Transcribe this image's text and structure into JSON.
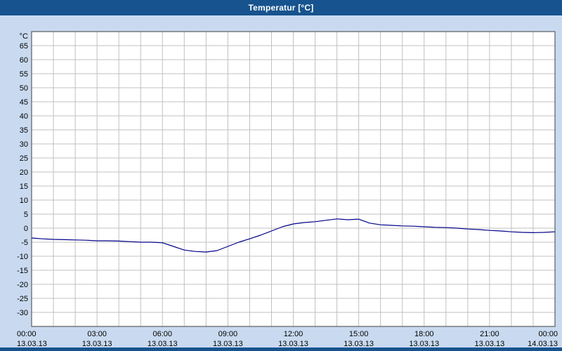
{
  "window": {
    "title": "Temperatur [°C]",
    "colors": {
      "titlebar": "#17538e",
      "background": "#c9daf0",
      "bottom_border": "#17538e"
    }
  },
  "chart_data": {
    "type": "line",
    "title": "Temperatur [°C]",
    "y_axis": {
      "unit_label": "°C",
      "min": -35,
      "max": 70,
      "tick_step": 5,
      "tick_labels": [
        "65",
        "60",
        "55",
        "50",
        "45",
        "40",
        "35",
        "30",
        "25",
        "20",
        "15",
        "10",
        "5",
        "0",
        "-5",
        "-10",
        "-15",
        "-20",
        "-25",
        "-30"
      ]
    },
    "x_axis": {
      "min_hour": 0,
      "max_hour": 24,
      "minor_grid_step_hours": 1,
      "ticks": [
        {
          "hour": 0,
          "time": "00:00",
          "date": "13.03.13"
        },
        {
          "hour": 3,
          "time": "03:00",
          "date": "13.03.13"
        },
        {
          "hour": 6,
          "time": "06:00",
          "date": "13.03.13"
        },
        {
          "hour": 9,
          "time": "09:00",
          "date": "13.03.13"
        },
        {
          "hour": 12,
          "time": "12:00",
          "date": "13.03.13"
        },
        {
          "hour": 15,
          "time": "15:00",
          "date": "13.03.13"
        },
        {
          "hour": 18,
          "time": "18:00",
          "date": "13.03.13"
        },
        {
          "hour": 21,
          "time": "21:00",
          "date": "13.03.13"
        },
        {
          "hour": 24,
          "time": "00:00",
          "date": "14.03.13"
        }
      ]
    },
    "grid": {
      "show": true,
      "color": "#c0c0c0"
    },
    "plot": {
      "background": "#ffffff",
      "border_color": "#404040"
    },
    "series": [
      {
        "name": "Temperatur",
        "unit": "°C",
        "color": "#00008b",
        "x_hours": [
          0,
          0.5,
          1,
          1.5,
          2,
          2.5,
          3,
          3.5,
          4,
          4.5,
          5,
          5.5,
          6,
          6.5,
          7,
          7.5,
          8,
          8.5,
          9,
          9.5,
          10,
          10.5,
          11,
          11.5,
          12,
          12.5,
          13,
          13.5,
          14,
          14.5,
          15,
          15.5,
          16,
          16.5,
          17,
          17.5,
          18,
          18.5,
          19,
          19.5,
          20,
          20.5,
          21,
          21.5,
          22,
          22.5,
          23,
          23.5,
          24
        ],
        "values_c": [
          -3.5,
          -3.8,
          -4,
          -4.1,
          -4.2,
          -4.3,
          -4.5,
          -4.5,
          -4.6,
          -4.8,
          -5,
          -5,
          -5.2,
          -6.5,
          -7.8,
          -8.3,
          -8.5,
          -8,
          -6.5,
          -5,
          -3.8,
          -2.5,
          -1,
          0.5,
          1.5,
          2,
          2.3,
          2.8,
          3.3,
          3,
          3.2,
          1.8,
          1.2,
          1,
          0.8,
          0.7,
          0.5,
          0.3,
          0.2,
          0,
          -0.3,
          -0.5,
          -0.8,
          -1,
          -1.3,
          -1.5,
          -1.6,
          -1.5,
          -1.3
        ]
      }
    ]
  }
}
